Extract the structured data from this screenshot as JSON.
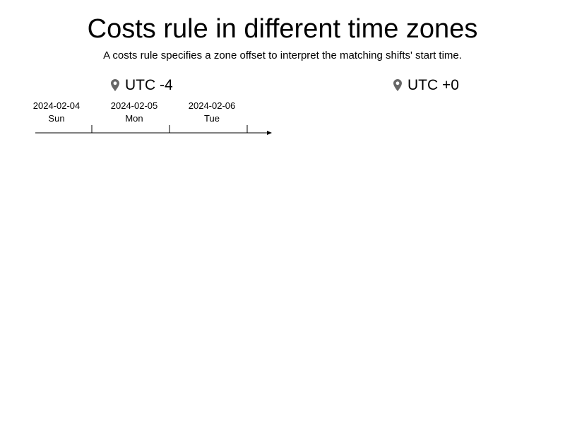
{
  "title": "Costs rule in different time zones",
  "subtitle": "A costs rule specifies a zone offset to interpret the matching shifts' start time.",
  "zones": [
    {
      "label": "UTC -4",
      "icon": "location-pin-icon"
    },
    {
      "label": "UTC +0",
      "icon": "location-pin-icon"
    }
  ],
  "timeline": {
    "days": [
      {
        "date": "2024-02-04",
        "weekday": "Sun"
      },
      {
        "date": "2024-02-05",
        "weekday": "Mon"
      },
      {
        "date": "2024-02-06",
        "weekday": "Tue"
      }
    ]
  },
  "colors": {
    "pin": "#666666",
    "axis": "#000000"
  }
}
